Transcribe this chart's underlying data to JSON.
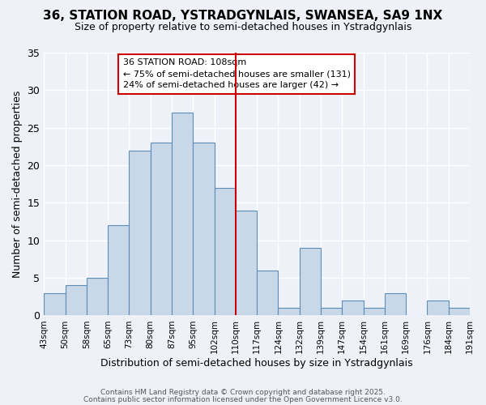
{
  "title_line1": "36, STATION ROAD, YSTRADGYNLAIS, SWANSEA, SA9 1NX",
  "title_line2": "Size of property relative to semi-detached houses in Ystradgynlais",
  "xlabel": "Distribution of semi-detached houses by size in Ystradgynlais",
  "ylabel": "Number of semi-detached properties",
  "bin_labels": [
    "43sqm",
    "50sqm",
    "58sqm",
    "65sqm",
    "73sqm",
    "80sqm",
    "87sqm",
    "95sqm",
    "102sqm",
    "110sqm",
    "117sqm",
    "124sqm",
    "132sqm",
    "139sqm",
    "147sqm",
    "154sqm",
    "161sqm",
    "169sqm",
    "176sqm",
    "184sqm",
    "191sqm"
  ],
  "bar_values": [
    3,
    4,
    5,
    12,
    22,
    23,
    27,
    23,
    17,
    14,
    6,
    1,
    9,
    1,
    2,
    1,
    3,
    0,
    2,
    1
  ],
  "bar_color": "#c8d8e8",
  "bar_edge_color": "#5b8db8",
  "background_color": "#eef2f8",
  "grid_color": "#ffffff",
  "vline_color": "#cc0000",
  "ylim": [
    0,
    35
  ],
  "yticks": [
    0,
    5,
    10,
    15,
    20,
    25,
    30,
    35
  ],
  "annotation_title": "36 STATION ROAD: 108sqm",
  "annotation_line1": "← 75% of semi-detached houses are smaller (131)",
  "annotation_line2": "24% of semi-detached houses are larger (42) →",
  "annotation_box_color": "#ffffff",
  "annotation_box_edge": "#cc0000",
  "footer_line1": "Contains HM Land Registry data © Crown copyright and database right 2025.",
  "footer_line2": "Contains public sector information licensed under the Open Government Licence v3.0."
}
